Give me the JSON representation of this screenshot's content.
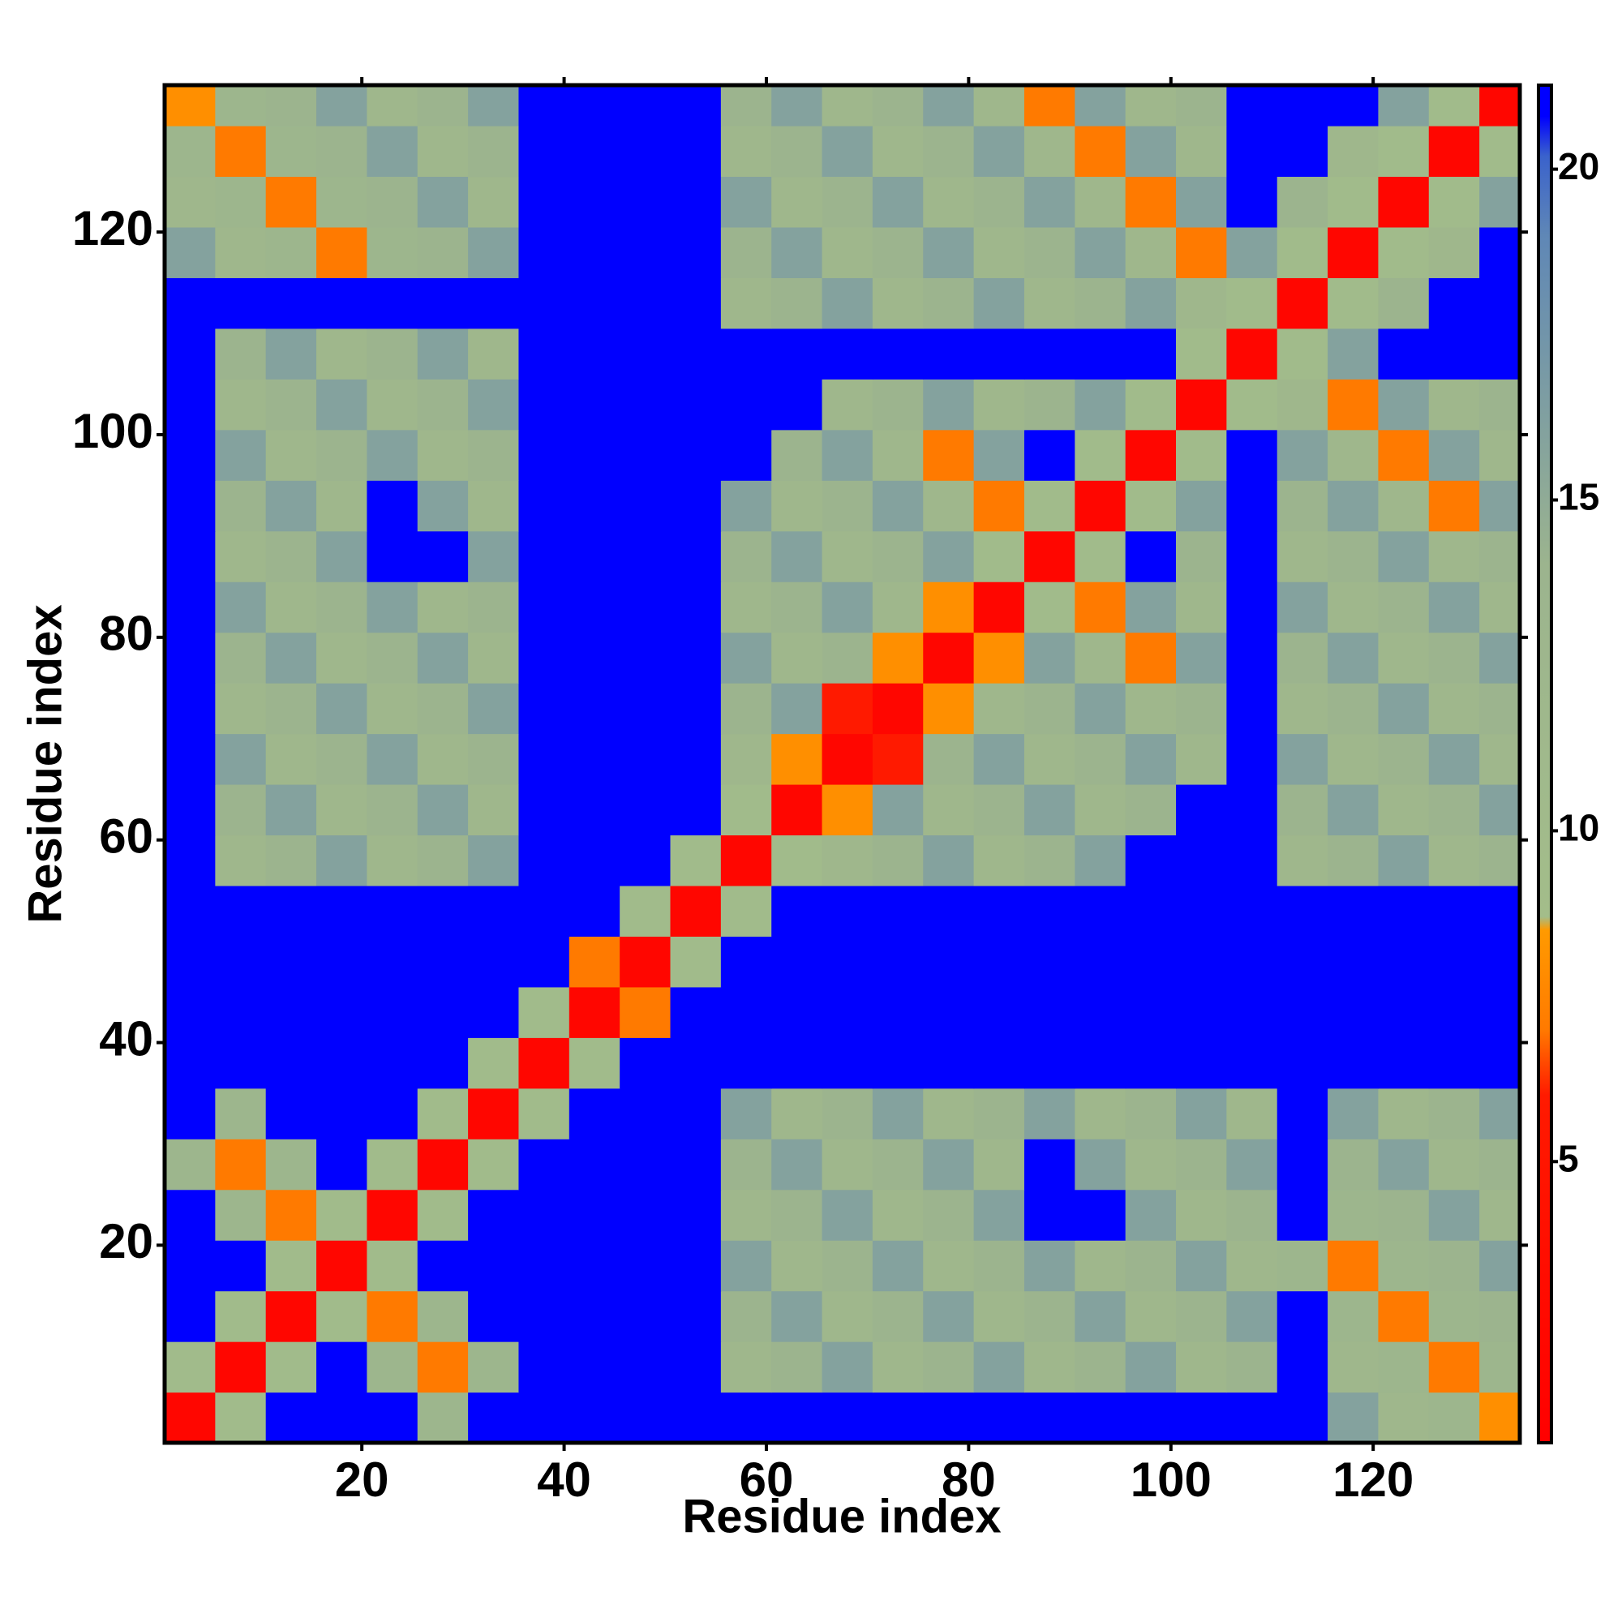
{
  "chart_data": {
    "type": "heatmap",
    "xlabel": "Residue index",
    "ylabel": "Residue index",
    "x": [
      3,
      8,
      13,
      18,
      23,
      28,
      33,
      38,
      43,
      48,
      53,
      58,
      63,
      68,
      73,
      78,
      83,
      88,
      93,
      98,
      103,
      108,
      113,
      118,
      123,
      128,
      133
    ],
    "y": [
      3,
      8,
      13,
      18,
      23,
      28,
      33,
      38,
      43,
      48,
      53,
      58,
      63,
      68,
      73,
      78,
      83,
      88,
      93,
      98,
      103,
      108,
      113,
      118,
      123,
      128,
      133
    ],
    "z": [
      [
        2,
        10,
        21,
        21,
        21,
        13,
        21,
        21,
        21,
        21,
        21,
        21,
        21,
        21,
        21,
        21,
        21,
        21,
        21,
        21,
        21,
        21,
        21,
        16,
        12,
        13,
        8
      ],
      [
        10,
        2,
        10,
        21,
        13,
        7,
        13,
        21,
        21,
        21,
        21,
        12,
        14,
        16,
        12,
        14,
        16,
        12,
        14,
        16,
        12,
        14,
        21,
        12,
        13,
        7,
        13
      ],
      [
        21,
        10,
        2,
        10,
        7,
        13,
        21,
        21,
        21,
        21,
        21,
        14,
        16,
        12,
        14,
        16,
        12,
        14,
        16,
        12,
        14,
        16,
        21,
        13,
        7,
        13,
        14
      ],
      [
        21,
        21,
        10,
        2,
        10,
        21,
        21,
        21,
        21,
        21,
        21,
        16,
        12,
        14,
        16,
        12,
        14,
        16,
        12,
        14,
        16,
        12,
        13,
        7,
        13,
        14,
        16
      ],
      [
        21,
        13,
        7,
        10,
        2,
        10,
        21,
        21,
        21,
        21,
        21,
        12,
        14,
        16,
        12,
        14,
        16,
        21,
        21,
        16,
        12,
        14,
        21,
        13,
        14,
        16,
        12
      ],
      [
        13,
        7,
        13,
        21,
        10,
        2,
        10,
        21,
        21,
        21,
        21,
        14,
        16,
        12,
        14,
        16,
        12,
        21,
        16,
        12,
        14,
        16,
        21,
        14,
        16,
        12,
        14
      ],
      [
        21,
        13,
        21,
        21,
        21,
        10,
        2,
        10,
        21,
        21,
        21,
        16,
        12,
        14,
        16,
        12,
        14,
        16,
        12,
        14,
        16,
        12,
        21,
        16,
        12,
        14,
        16
      ],
      [
        21,
        21,
        21,
        21,
        21,
        21,
        10,
        2,
        10,
        21,
        21,
        21,
        21,
        21,
        21,
        21,
        21,
        21,
        21,
        21,
        21,
        21,
        21,
        21,
        21,
        21,
        21
      ],
      [
        21,
        21,
        21,
        21,
        21,
        21,
        21,
        10,
        2,
        7,
        21,
        21,
        21,
        21,
        21,
        21,
        21,
        21,
        21,
        21,
        21,
        21,
        21,
        21,
        21,
        21,
        21
      ],
      [
        21,
        21,
        21,
        21,
        21,
        21,
        21,
        21,
        7,
        2,
        10,
        21,
        21,
        21,
        21,
        21,
        21,
        21,
        21,
        21,
        21,
        21,
        21,
        21,
        21,
        21,
        21
      ],
      [
        21,
        21,
        21,
        21,
        21,
        21,
        21,
        21,
        21,
        10,
        2,
        10,
        21,
        21,
        21,
        21,
        21,
        21,
        21,
        21,
        21,
        21,
        21,
        21,
        21,
        21,
        21
      ],
      [
        21,
        12,
        14,
        16,
        12,
        14,
        16,
        21,
        21,
        21,
        10,
        2,
        10,
        12,
        14,
        16,
        12,
        14,
        16,
        21,
        21,
        21,
        12,
        14,
        16,
        12,
        14
      ],
      [
        21,
        14,
        16,
        12,
        14,
        16,
        12,
        21,
        21,
        21,
        21,
        10,
        2,
        8,
        16,
        12,
        14,
        16,
        12,
        14,
        21,
        21,
        14,
        16,
        12,
        14,
        16
      ],
      [
        21,
        16,
        12,
        14,
        16,
        12,
        14,
        21,
        21,
        21,
        21,
        12,
        8,
        2,
        6,
        14,
        16,
        12,
        14,
        16,
        12,
        21,
        16,
        12,
        14,
        16,
        12
      ],
      [
        21,
        12,
        14,
        16,
        12,
        14,
        16,
        21,
        21,
        21,
        21,
        14,
        16,
        6,
        2,
        8,
        12,
        14,
        16,
        12,
        14,
        21,
        12,
        14,
        16,
        12,
        14
      ],
      [
        21,
        14,
        16,
        12,
        14,
        16,
        12,
        21,
        21,
        21,
        21,
        16,
        12,
        14,
        8,
        2,
        8,
        16,
        12,
        7,
        16,
        21,
        14,
        16,
        12,
        14,
        16
      ],
      [
        21,
        16,
        12,
        14,
        16,
        12,
        14,
        21,
        21,
        21,
        21,
        12,
        14,
        16,
        12,
        8,
        2,
        10,
        7,
        16,
        12,
        21,
        16,
        12,
        14,
        16,
        12
      ],
      [
        21,
        12,
        14,
        16,
        21,
        21,
        16,
        21,
        21,
        21,
        21,
        14,
        16,
        12,
        14,
        16,
        10,
        2,
        10,
        21,
        14,
        21,
        12,
        14,
        16,
        12,
        14
      ],
      [
        21,
        14,
        16,
        12,
        21,
        16,
        12,
        21,
        21,
        21,
        21,
        16,
        12,
        14,
        16,
        12,
        7,
        10,
        2,
        10,
        16,
        21,
        14,
        16,
        12,
        7,
        16
      ],
      [
        21,
        16,
        12,
        14,
        16,
        12,
        14,
        21,
        21,
        21,
        21,
        21,
        14,
        16,
        12,
        7,
        16,
        21,
        10,
        2,
        10,
        21,
        16,
        12,
        7,
        16,
        12
      ],
      [
        21,
        12,
        14,
        16,
        12,
        14,
        16,
        21,
        21,
        21,
        21,
        21,
        21,
        12,
        14,
        16,
        12,
        14,
        16,
        10,
        2,
        10,
        12,
        7,
        16,
        12,
        14
      ],
      [
        21,
        14,
        16,
        12,
        14,
        16,
        12,
        21,
        21,
        21,
        21,
        21,
        21,
        21,
        21,
        21,
        21,
        21,
        21,
        21,
        10,
        2,
        10,
        16,
        21,
        21,
        21
      ],
      [
        21,
        21,
        21,
        21,
        21,
        21,
        21,
        21,
        21,
        21,
        21,
        12,
        14,
        16,
        12,
        14,
        16,
        12,
        14,
        16,
        12,
        10,
        2,
        10,
        14,
        21,
        21
      ],
      [
        16,
        12,
        13,
        7,
        13,
        14,
        16,
        21,
        21,
        21,
        21,
        14,
        16,
        12,
        14,
        16,
        12,
        14,
        16,
        12,
        7,
        16,
        10,
        2,
        10,
        12,
        21
      ],
      [
        12,
        13,
        7,
        13,
        14,
        16,
        12,
        21,
        21,
        21,
        21,
        16,
        12,
        14,
        16,
        12,
        14,
        16,
        12,
        7,
        16,
        21,
        14,
        10,
        2,
        10,
        16
      ],
      [
        13,
        7,
        13,
        14,
        16,
        12,
        14,
        21,
        21,
        21,
        21,
        12,
        14,
        16,
        12,
        14,
        16,
        12,
        7,
        16,
        12,
        21,
        21,
        12,
        10,
        2,
        10
      ],
      [
        8,
        13,
        14,
        16,
        12,
        14,
        16,
        21,
        21,
        21,
        21,
        14,
        16,
        12,
        14,
        16,
        12,
        7,
        16,
        12,
        14,
        21,
        21,
        21,
        16,
        10,
        2
      ]
    ],
    "xlim": [
      0.5,
      134.5
    ],
    "ylim": [
      0.5,
      134.5
    ],
    "xticks": [
      20,
      40,
      60,
      80,
      100,
      120
    ],
    "yticks": [
      20,
      40,
      60,
      80,
      100,
      120
    ],
    "zlim": [
      0.75,
      21.27
    ],
    "zticks": [
      5,
      10,
      15,
      20
    ],
    "colorscale": [
      [
        0.75,
        "#ff0000"
      ],
      [
        6,
        "#ff1a00"
      ],
      [
        7,
        "#ff7a00"
      ],
      [
        8.5,
        "#ff9a00"
      ],
      [
        8.7,
        "#a3bd8a"
      ],
      [
        14,
        "#9cb48e"
      ],
      [
        19,
        "#5f87b6"
      ],
      [
        20.2,
        "#3a62cc"
      ],
      [
        20.8,
        "#0000ff"
      ],
      [
        21.27,
        "#0000ff"
      ]
    ],
    "colorbar": true
  }
}
